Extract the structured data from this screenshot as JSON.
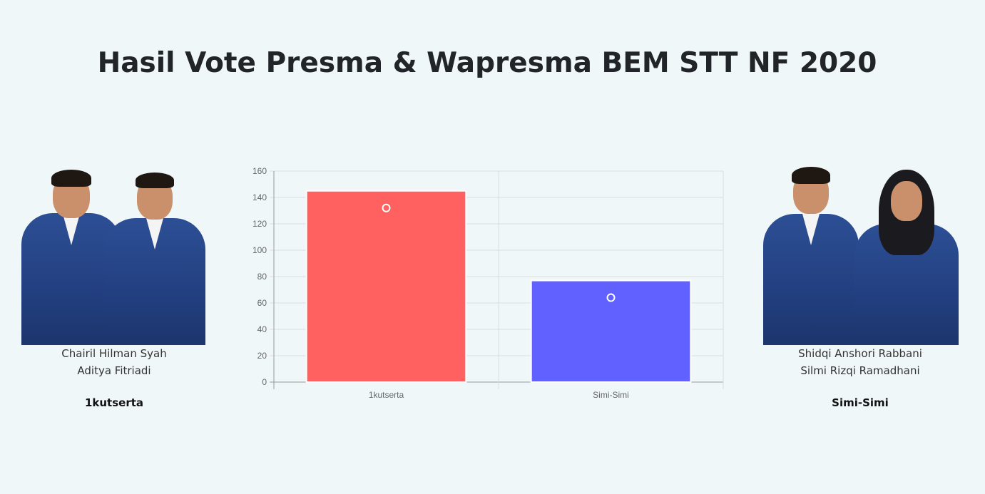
{
  "page": {
    "title": "Hasil Vote Presma & Wapresma BEM STT NF 2020"
  },
  "candidates": [
    {
      "name1": "Chairil Hilman Syah",
      "name2": "Aditya Fitriadi",
      "team": "1kutserta"
    },
    {
      "name1": "Shidqi Anshori Rabbani",
      "name2": "Silmi Rizqi Ramadhani",
      "team": "Simi-Simi"
    }
  ],
  "chart_data": {
    "type": "bar",
    "categories": [
      "1kutserta",
      "Simi-Simi"
    ],
    "values": [
      145,
      77
    ],
    "ylim": [
      0,
      160
    ],
    "yticks": [
      "0",
      "20",
      "40",
      "60",
      "80",
      "100",
      "120",
      "140",
      "160"
    ],
    "colors": [
      "#ff6161",
      "#6161ff"
    ],
    "grid": true
  }
}
